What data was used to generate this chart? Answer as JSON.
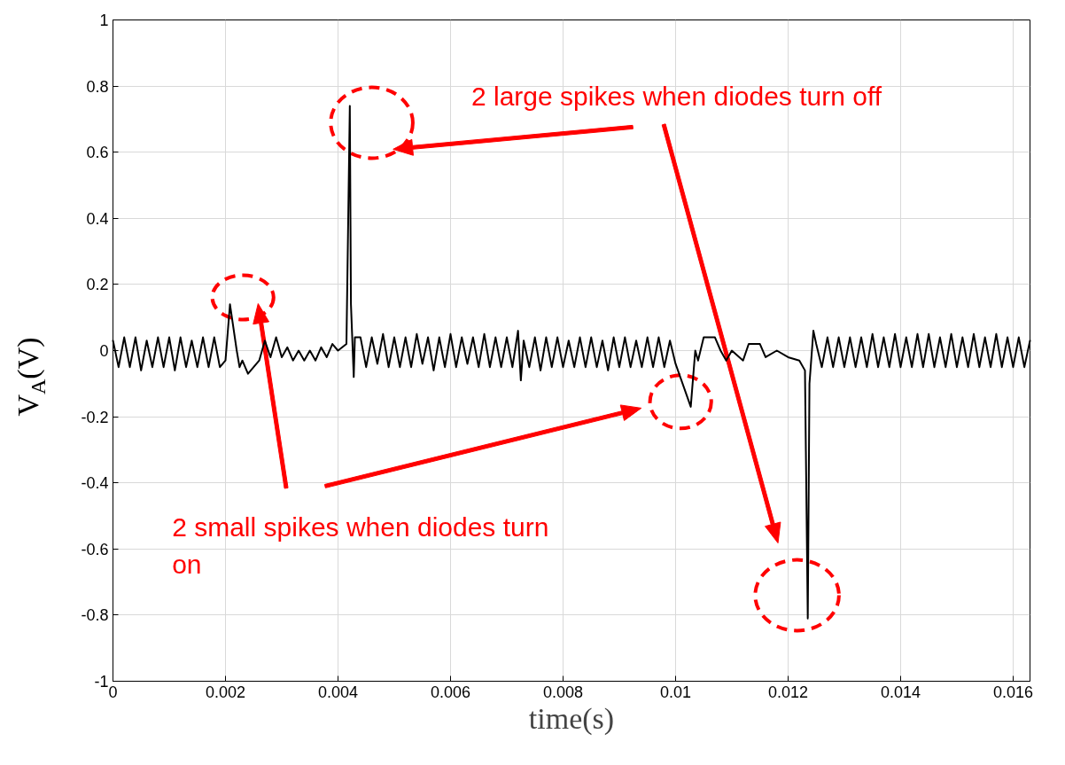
{
  "chart_data": {
    "type": "line",
    "xlabel": "time(s)",
    "ylabel": "V$_{A}$(V)",
    "xlim": [
      0,
      0.0163
    ],
    "xticks": [
      0,
      0.002,
      0.004,
      0.006,
      0.008,
      0.01,
      0.012,
      0.014,
      0.016
    ],
    "ylim": [
      -1,
      1
    ],
    "yticks": [
      -1,
      -0.8,
      -0.6,
      -0.4,
      -0.2,
      0,
      0.2,
      0.4,
      0.6,
      0.8,
      1
    ],
    "grid": true,
    "marker": "none",
    "line_style": "solid",
    "annotations": [
      "2 large spikes when diodes turn off",
      "2 small spikes  when diodes turn on"
    ],
    "series": [
      {
        "color": "#000000",
        "x": [
          0,
          0.0001,
          0.0002,
          0.0003,
          0.0004,
          0.0005,
          0.0006,
          0.0007,
          0.0008,
          0.0009,
          0.001,
          0.0011,
          0.0012,
          0.0013,
          0.0014,
          0.0015,
          0.0016,
          0.0017,
          0.0018,
          0.0019,
          0.002,
          0.00208,
          0.0022,
          0.00225,
          0.0023,
          0.0024,
          0.0025,
          0.0026,
          0.0027,
          0.0028,
          0.0029,
          0.003,
          0.0031,
          0.0032,
          0.0033,
          0.0034,
          0.0035,
          0.0036,
          0.0037,
          0.0038,
          0.0039,
          0.004,
          0.00415,
          0.00421,
          0.00423,
          0.00428,
          0.0043,
          0.0044,
          0.0045,
          0.0046,
          0.0047,
          0.0048,
          0.0049,
          0.005,
          0.0051,
          0.0052,
          0.0053,
          0.0054,
          0.0055,
          0.0056,
          0.0057,
          0.0058,
          0.0059,
          0.006,
          0.0061,
          0.0062,
          0.0063,
          0.0064,
          0.0065,
          0.0066,
          0.0067,
          0.0068,
          0.0069,
          0.007,
          0.0071,
          0.0072,
          0.00725,
          0.0073,
          0.0074,
          0.0075,
          0.0076,
          0.0077,
          0.0078,
          0.0079,
          0.008,
          0.0081,
          0.0082,
          0.0083,
          0.0084,
          0.0085,
          0.0086,
          0.0087,
          0.0088,
          0.0089,
          0.009,
          0.0091,
          0.0092,
          0.0093,
          0.0094,
          0.0095,
          0.0096,
          0.0097,
          0.0098,
          0.0099,
          0.01,
          0.01027,
          0.01035,
          0.0104,
          0.0105,
          0.0107,
          0.0108,
          0.0109,
          0.011,
          0.0112,
          0.0113,
          0.0115,
          0.0116,
          0.0118,
          0.012,
          0.0122,
          0.0123,
          0.01235,
          0.01238,
          0.01245,
          0.0125,
          0.0126,
          0.0127,
          0.0128,
          0.0129,
          0.013,
          0.0131,
          0.0132,
          0.0133,
          0.0134,
          0.0135,
          0.0136,
          0.0137,
          0.0138,
          0.0139,
          0.014,
          0.0141,
          0.0142,
          0.0143,
          0.0144,
          0.0145,
          0.0146,
          0.0147,
          0.0148,
          0.0149,
          0.015,
          0.0151,
          0.0152,
          0.0153,
          0.0154,
          0.0155,
          0.0156,
          0.0157,
          0.0158,
          0.0159,
          0.016,
          0.0161,
          0.0162,
          0.0163
        ],
        "values": [
          0.03,
          -0.05,
          0.04,
          -0.05,
          0.04,
          -0.06,
          0.03,
          -0.05,
          0.04,
          -0.05,
          0.04,
          -0.06,
          0.04,
          -0.05,
          0.03,
          -0.05,
          0.04,
          -0.05,
          0.04,
          -0.05,
          -0.03,
          0.14,
          0.0,
          -0.05,
          -0.03,
          -0.07,
          -0.05,
          -0.03,
          0.03,
          -0.02,
          0.04,
          -0.02,
          0.01,
          -0.03,
          0.0,
          -0.03,
          0.0,
          -0.03,
          0.01,
          -0.02,
          0.02,
          0.0,
          0.02,
          0.74,
          0.14,
          -0.08,
          0.04,
          0.04,
          -0.05,
          0.04,
          -0.04,
          0.05,
          -0.05,
          0.04,
          -0.05,
          0.04,
          -0.05,
          0.05,
          -0.04,
          0.04,
          -0.06,
          0.04,
          -0.05,
          0.05,
          -0.05,
          0.04,
          -0.04,
          0.04,
          -0.05,
          0.05,
          -0.05,
          0.04,
          -0.05,
          0.04,
          -0.05,
          0.06,
          -0.09,
          0.03,
          -0.05,
          0.04,
          -0.06,
          0.04,
          -0.05,
          0.04,
          -0.05,
          0.03,
          -0.05,
          0.04,
          -0.05,
          0.04,
          -0.05,
          0.03,
          -0.06,
          0.04,
          -0.05,
          0.04,
          -0.05,
          0.03,
          -0.05,
          0.04,
          -0.05,
          0.04,
          -0.05,
          0.03,
          -0.04,
          -0.17,
          0.0,
          -0.03,
          0.04,
          0.04,
          0.0,
          -0.03,
          0.0,
          -0.03,
          0.02,
          0.02,
          -0.02,
          0.0,
          -0.02,
          -0.03,
          -0.06,
          -0.81,
          -0.1,
          0.06,
          0.02,
          -0.05,
          0.04,
          -0.05,
          0.04,
          -0.05,
          0.04,
          -0.05,
          0.04,
          -0.05,
          0.05,
          -0.05,
          0.04,
          -0.05,
          0.05,
          -0.05,
          0.04,
          -0.05,
          0.05,
          -0.05,
          0.05,
          -0.05,
          0.04,
          -0.05,
          0.05,
          -0.05,
          0.04,
          -0.05,
          0.05,
          -0.05,
          0.04,
          -0.05,
          0.05,
          -0.05,
          0.04,
          -0.05,
          0.04,
          -0.05,
          0.03
        ]
      }
    ]
  }
}
